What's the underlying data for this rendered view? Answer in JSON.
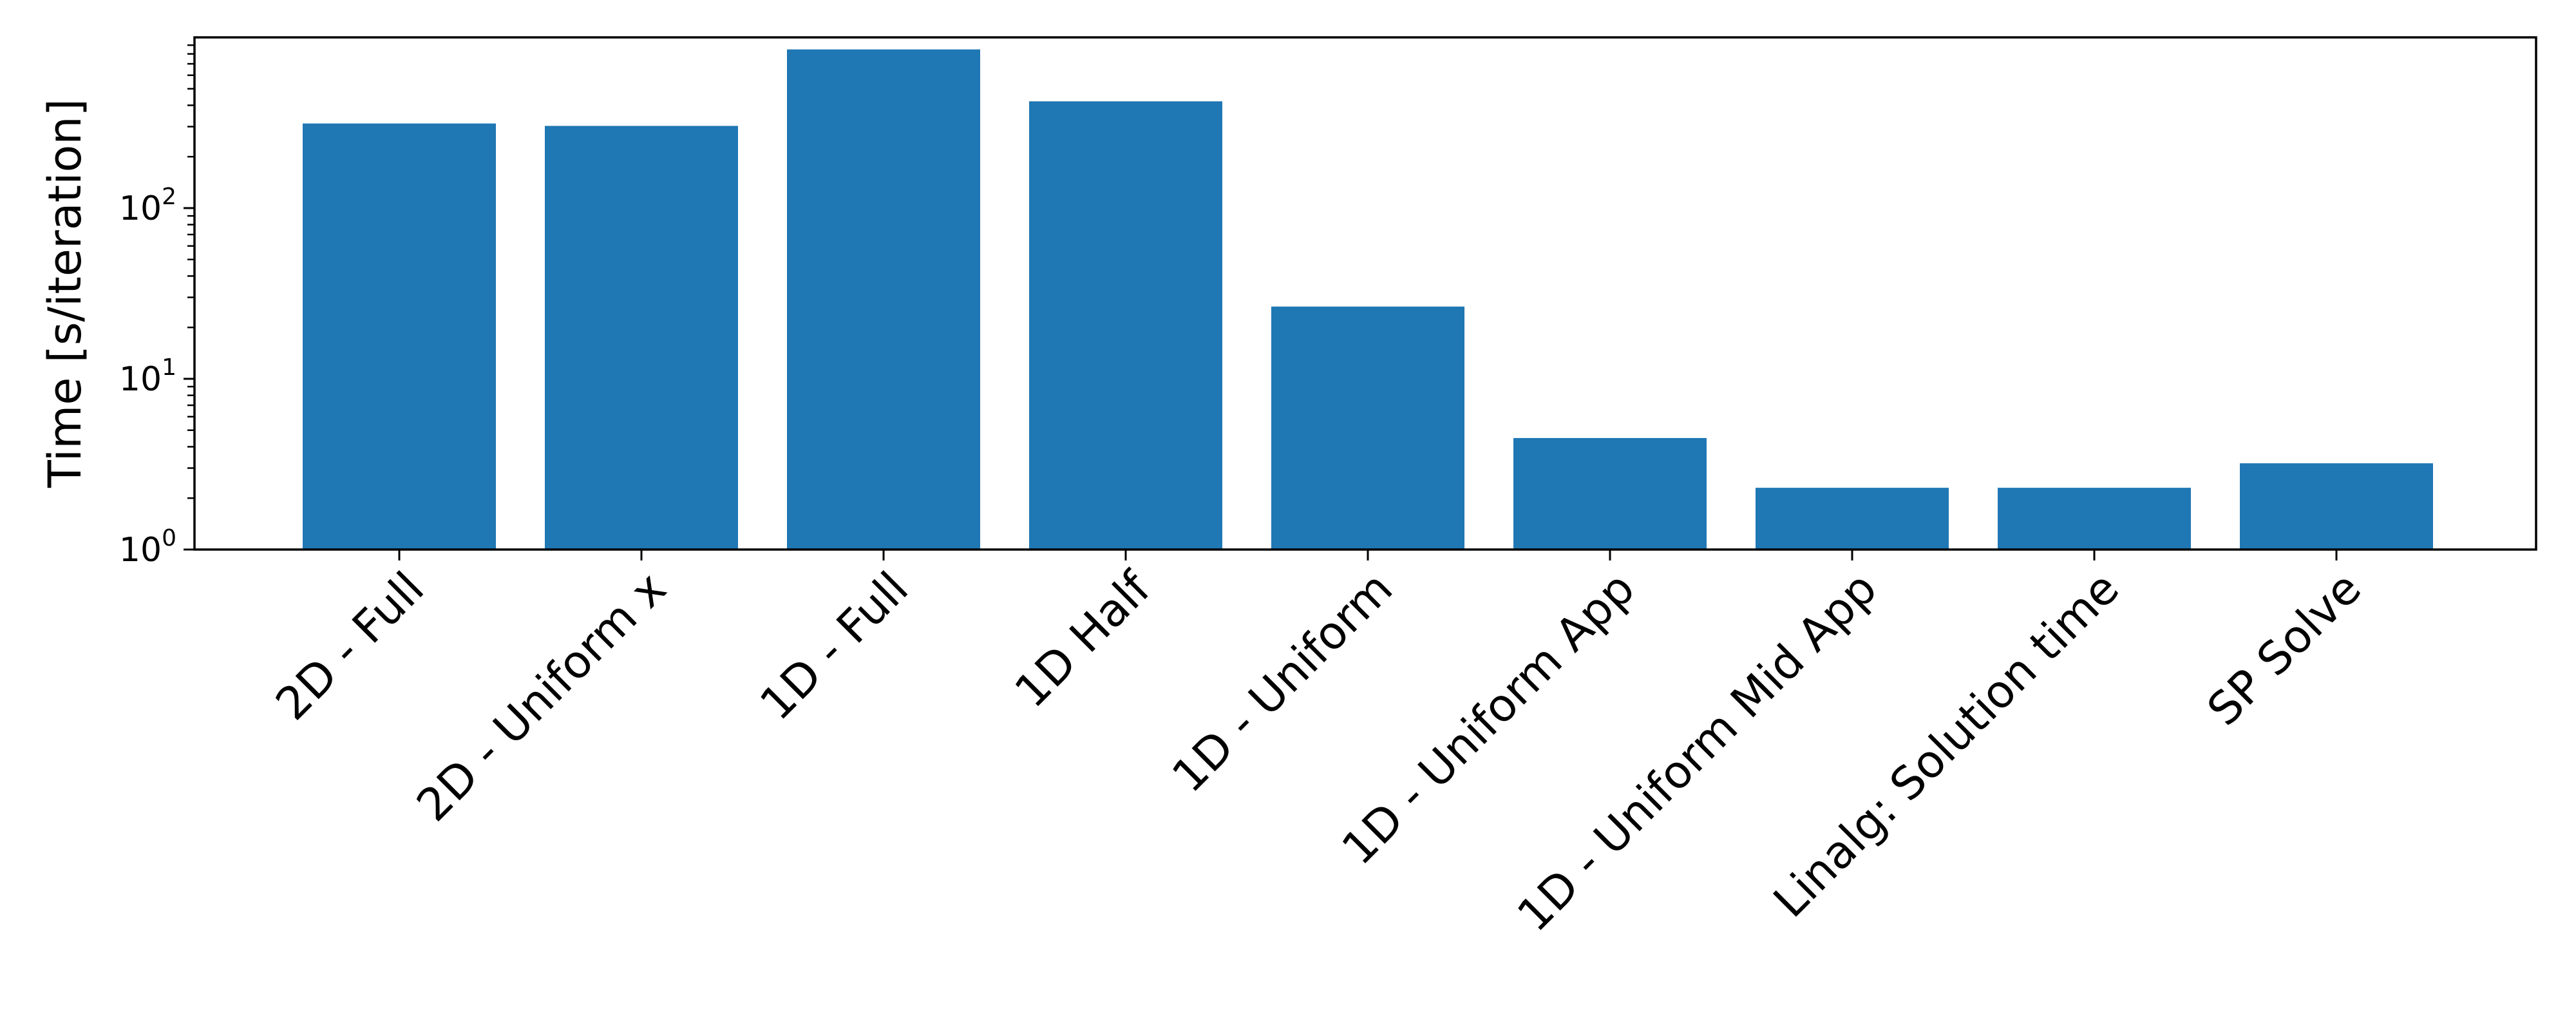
{
  "chart_data": {
    "type": "bar",
    "title": "",
    "xlabel": "",
    "ylabel": "Time [s/iteration]",
    "yscale": "log",
    "ylim": [
      1,
      1000
    ],
    "yticks": [
      {
        "value": 1,
        "base": "10",
        "exp": "0"
      },
      {
        "value": 10,
        "base": "10",
        "exp": "1"
      },
      {
        "value": 100,
        "base": "10",
        "exp": "2"
      }
    ],
    "grid": false,
    "bar_color": "#1f77b4",
    "categories": [
      "2D - Full",
      "2D - Uniform x",
      "1D - Full",
      "1D Half",
      "1D - Uniform",
      "1D - Uniform App",
      "1D - Uniform Mid App",
      "Linalg: Solution time",
      "SP Solve"
    ],
    "values": [
      313,
      303,
      850,
      422,
      26.5,
      4.5,
      2.3,
      2.3,
      3.2
    ]
  }
}
